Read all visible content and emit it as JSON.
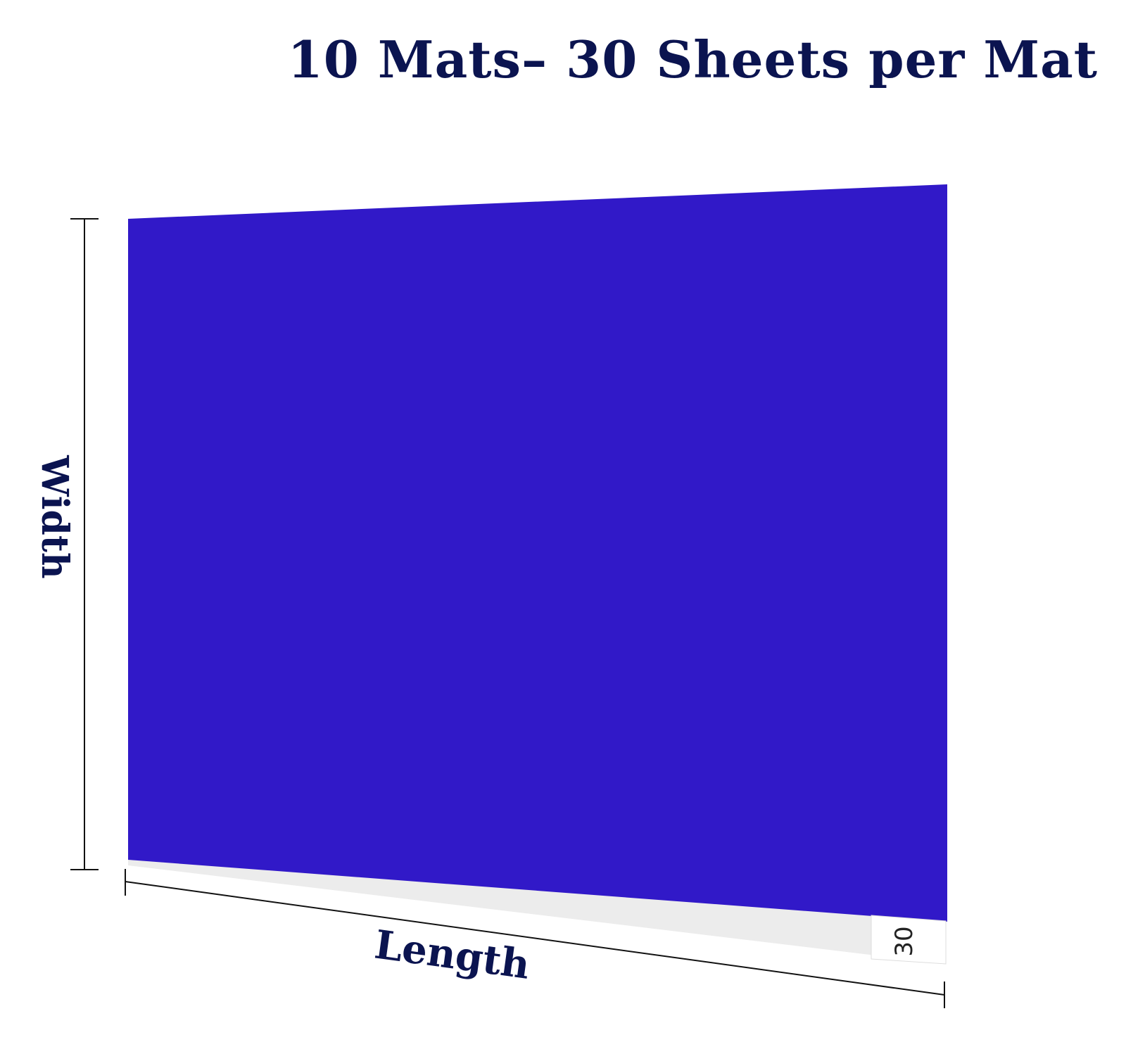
{
  "headline": "10 Mats– 30 Sheets per Mat",
  "product": {
    "mat_color": "#3119c8",
    "sheet_count_tag": "30"
  },
  "dimensions": {
    "width_label": "Width",
    "length_label": "Length"
  },
  "colors": {
    "text": "#0b1450",
    "dimension_line": "#111111"
  }
}
